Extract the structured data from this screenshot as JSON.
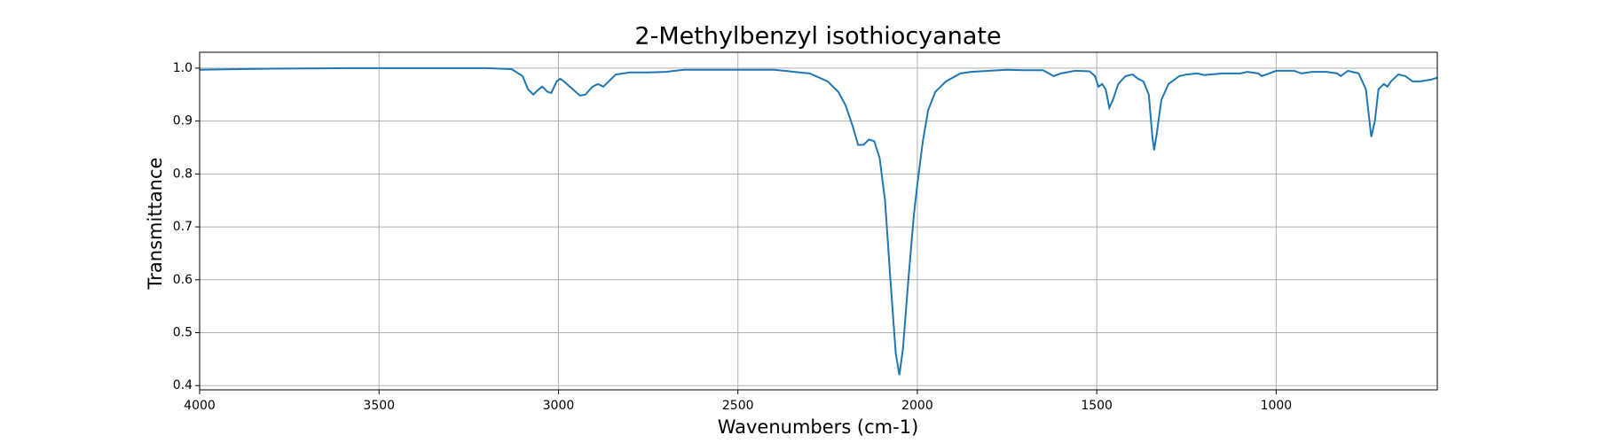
{
  "chart_data": {
    "type": "line",
    "title": "2-Methylbenzyl isothiocyanate",
    "x_label": "Wavenumbers (cm-1)",
    "y_label": "Transmittance",
    "x": [
      4000,
      3800,
      3600,
      3400,
      3200,
      3130,
      3100,
      3085,
      3070,
      3055,
      3045,
      3030,
      3020,
      3005,
      2995,
      2985,
      2960,
      2940,
      2925,
      2905,
      2890,
      2875,
      2860,
      2840,
      2800,
      2750,
      2700,
      2650,
      2500,
      2400,
      2300,
      2250,
      2220,
      2200,
      2180,
      2165,
      2150,
      2135,
      2120,
      2105,
      2090,
      2075,
      2060,
      2050,
      2040,
      2025,
      2010,
      2000,
      1985,
      1970,
      1950,
      1920,
      1880,
      1850,
      1800,
      1750,
      1700,
      1650,
      1620,
      1600,
      1560,
      1520,
      1505,
      1495,
      1485,
      1475,
      1465,
      1455,
      1440,
      1420,
      1400,
      1385,
      1370,
      1355,
      1345,
      1340,
      1332,
      1320,
      1300,
      1270,
      1250,
      1220,
      1200,
      1150,
      1100,
      1080,
      1050,
      1040,
      1020,
      1000,
      950,
      930,
      900,
      860,
      830,
      820,
      800,
      770,
      750,
      740,
      735,
      725,
      715,
      700,
      690,
      680,
      660,
      640,
      620,
      600,
      570,
      551
    ],
    "values": [
      0.997,
      0.999,
      1.0,
      1.0,
      1.0,
      0.998,
      0.985,
      0.96,
      0.95,
      0.96,
      0.965,
      0.955,
      0.953,
      0.975,
      0.98,
      0.975,
      0.96,
      0.948,
      0.95,
      0.965,
      0.97,
      0.965,
      0.975,
      0.988,
      0.992,
      0.992,
      0.993,
      0.997,
      0.997,
      0.997,
      0.99,
      0.975,
      0.955,
      0.93,
      0.89,
      0.855,
      0.855,
      0.865,
      0.862,
      0.83,
      0.75,
      0.6,
      0.46,
      0.42,
      0.47,
      0.6,
      0.72,
      0.78,
      0.86,
      0.92,
      0.955,
      0.975,
      0.99,
      0.993,
      0.995,
      0.997,
      0.996,
      0.996,
      0.985,
      0.99,
      0.995,
      0.994,
      0.985,
      0.965,
      0.97,
      0.96,
      0.925,
      0.94,
      0.97,
      0.985,
      0.988,
      0.98,
      0.975,
      0.95,
      0.87,
      0.845,
      0.88,
      0.94,
      0.97,
      0.985,
      0.988,
      0.99,
      0.987,
      0.99,
      0.99,
      0.993,
      0.99,
      0.985,
      0.99,
      0.995,
      0.995,
      0.99,
      0.993,
      0.993,
      0.99,
      0.985,
      0.995,
      0.99,
      0.96,
      0.9,
      0.87,
      0.9,
      0.96,
      0.97,
      0.965,
      0.975,
      0.988,
      0.985,
      0.975,
      0.975,
      0.978,
      0.982
    ],
    "color": "#1f77b4",
    "xlim": [
      4000,
      551
    ],
    "ylim": [
      0.392,
      1.03
    ],
    "xticks": [
      4000,
      3500,
      3000,
      2500,
      2000,
      1500,
      1000
    ],
    "yticks": [
      0.4,
      0.5,
      0.6,
      0.7,
      0.8,
      0.9,
      {
        "value": 1,
        "label": "1.0"
      }
    ],
    "grid": true
  }
}
